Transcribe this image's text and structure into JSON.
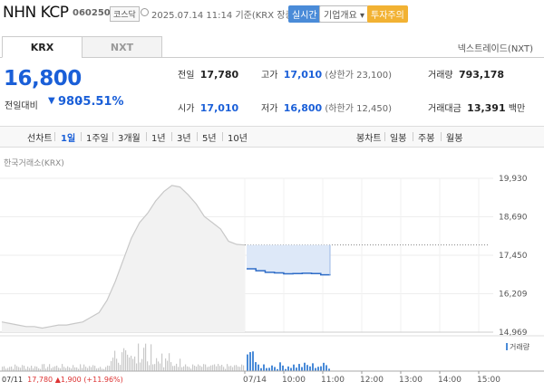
{
  "header": {
    "name": "NHN KCP",
    "code": "060250",
    "market": "코스닥",
    "date": "2025.07.14 11:14",
    "basis": "기준(KRX 장중)",
    "realtime": "실시간",
    "overview": "기업개요 ▾",
    "warning": "투자주의"
  },
  "tabs": {
    "krx": "KRX",
    "nxt": "NXT",
    "next_trade": "넥스트레이드(NXT)"
  },
  "quote": {
    "price": "16,800",
    "change_label": "전일대비",
    "change_value": "980",
    "change_pct": "-5.51%",
    "prev_label": "전일",
    "prev": "17,780",
    "high_label": "고가",
    "high": "17,010",
    "upper_limit": "(상한가 23,100)",
    "volume_label": "거래량",
    "volume": "793,178",
    "open_label": "시가",
    "open": "17,010",
    "low_label": "저가",
    "low": "16,800",
    "lower_limit": "(하한가 12,450)",
    "amount_label": "거래대금",
    "amount": "13,391",
    "amount_unit": "백만"
  },
  "periods": {
    "line_label": "선차트",
    "line_items": [
      "1일",
      "1주일",
      "3개월",
      "1년",
      "3년",
      "5년",
      "10년"
    ],
    "active": "1일",
    "candle_label": "봉차트",
    "candle_items": [
      "일봉",
      "주봉",
      "월봉"
    ]
  },
  "chart_src": "한국거래소(KRX)",
  "chart_data": {
    "type": "line",
    "y_ticks": [
      "19,930",
      "18,690",
      "17,450",
      "16,209",
      "14,969"
    ],
    "ylim": [
      14969,
      19930
    ],
    "prev_close": 17780,
    "prev_day_series": [
      15300,
      15250,
      15200,
      15150,
      15150,
      15100,
      15150,
      15200,
      15200,
      15250,
      15300,
      15450,
      15600,
      16000,
      16600,
      17300,
      18000,
      18500,
      18800,
      19200,
      19500,
      19700,
      19650,
      19400,
      19100,
      18700,
      18500,
      18300,
      17900,
      17800,
      17780
    ],
    "today_series": [
      17010,
      16950,
      16900,
      16880,
      16850,
      16860,
      16870,
      16860,
      16820,
      16800
    ],
    "volume_label": "거래량",
    "x_ticks": [
      "07/14",
      "10:00",
      "11:00",
      "12:00",
      "13:00",
      "14:00",
      "15:00"
    ],
    "footer": {
      "prev_date": "07/11",
      "prev_close": "17,780",
      "prev_change": "▲1,900",
      "prev_pct": "(+11.96%)"
    }
  }
}
